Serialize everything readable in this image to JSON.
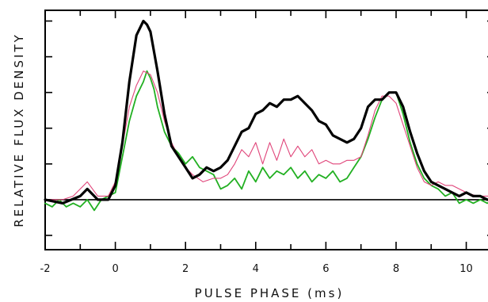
{
  "chart_data": {
    "type": "line",
    "title": "",
    "xlabel": "PULSE PHASE (ms)",
    "ylabel": "RELATIVE FLUX DENSITY",
    "xlim": [
      -2,
      10.8
    ],
    "ylim": [
      -1.4,
      5.3
    ],
    "x_ticks": [
      -2,
      0,
      2,
      4,
      6,
      8,
      10
    ],
    "x_tick_labels": [
      "-2",
      "0",
      "2",
      "4",
      "6",
      "8",
      "10"
    ],
    "y_ticks_unlabeled": [
      -1,
      0,
      1,
      2,
      3,
      4,
      5
    ],
    "grid": false,
    "baseline": 0,
    "colors": {
      "black": "#000000",
      "red": "#e0457a",
      "green": "#22b022",
      "baseline": "#000000"
    },
    "series": [
      {
        "color": "black",
        "x": [
          -2.0,
          -1.5,
          -1.0,
          -0.8,
          -0.5,
          -0.2,
          0.0,
          0.2,
          0.4,
          0.6,
          0.8,
          0.9,
          1.0,
          1.2,
          1.4,
          1.6,
          1.8,
          2.0,
          2.2,
          2.4,
          2.6,
          2.8,
          3.0,
          3.2,
          3.4,
          3.6,
          3.8,
          4.0,
          4.2,
          4.4,
          4.6,
          4.8,
          5.0,
          5.2,
          5.4,
          5.6,
          5.8,
          6.0,
          6.2,
          6.4,
          6.6,
          6.8,
          7.0,
          7.2,
          7.4,
          7.6,
          7.8,
          8.0,
          8.2,
          8.4,
          8.6,
          8.8,
          9.0,
          9.2,
          9.4,
          9.6,
          9.8,
          10.0,
          10.2,
          10.4,
          10.6,
          10.8
        ],
        "y": [
          0.0,
          -0.1,
          0.1,
          0.3,
          0.0,
          0.0,
          0.4,
          1.6,
          3.3,
          4.6,
          5.0,
          4.9,
          4.7,
          3.6,
          2.4,
          1.5,
          1.2,
          0.9,
          0.6,
          0.7,
          0.9,
          0.8,
          0.9,
          1.1,
          1.5,
          1.9,
          2.0,
          2.4,
          2.5,
          2.7,
          2.6,
          2.8,
          2.8,
          2.9,
          2.7,
          2.5,
          2.2,
          2.1,
          1.8,
          1.7,
          1.6,
          1.7,
          2.0,
          2.6,
          2.8,
          2.8,
          3.0,
          3.0,
          2.6,
          1.9,
          1.3,
          0.8,
          0.5,
          0.4,
          0.3,
          0.2,
          0.1,
          0.2,
          0.1,
          0.1,
          0.0,
          0.0
        ]
      },
      {
        "color": "red",
        "x": [
          -2.0,
          -1.5,
          -1.2,
          -0.8,
          -0.5,
          -0.2,
          0.0,
          0.2,
          0.4,
          0.6,
          0.8,
          1.0,
          1.2,
          1.4,
          1.6,
          1.8,
          2.0,
          2.2,
          2.5,
          2.8,
          3.0,
          3.2,
          3.4,
          3.6,
          3.8,
          4.0,
          4.2,
          4.4,
          4.6,
          4.8,
          5.0,
          5.2,
          5.4,
          5.6,
          5.8,
          6.0,
          6.2,
          6.4,
          6.6,
          6.8,
          7.0,
          7.2,
          7.4,
          7.6,
          7.8,
          8.0,
          8.2,
          8.4,
          8.6,
          8.8,
          9.0,
          9.2,
          9.4,
          9.6,
          9.8,
          10.0,
          10.3,
          10.6,
          10.8
        ],
        "y": [
          0.0,
          0.0,
          0.1,
          0.5,
          0.1,
          0.1,
          0.5,
          1.5,
          2.6,
          3.2,
          3.6,
          3.5,
          3.0,
          2.2,
          1.6,
          1.2,
          0.9,
          0.7,
          0.5,
          0.6,
          0.6,
          0.7,
          1.0,
          1.4,
          1.2,
          1.6,
          1.0,
          1.6,
          1.1,
          1.7,
          1.2,
          1.5,
          1.2,
          1.4,
          1.0,
          1.1,
          1.0,
          1.0,
          1.1,
          1.1,
          1.2,
          1.8,
          2.5,
          2.9,
          2.9,
          2.7,
          2.1,
          1.5,
          0.9,
          0.5,
          0.4,
          0.5,
          0.4,
          0.4,
          0.3,
          0.2,
          0.1,
          0.1,
          0.1
        ]
      },
      {
        "color": "green",
        "x": [
          -2.0,
          -1.8,
          -1.6,
          -1.4,
          -1.2,
          -1.0,
          -0.8,
          -0.6,
          -0.4,
          -0.2,
          0.0,
          0.2,
          0.4,
          0.6,
          0.8,
          0.9,
          1.0,
          1.1,
          1.2,
          1.4,
          1.6,
          1.8,
          2.0,
          2.2,
          2.4,
          2.6,
          2.8,
          3.0,
          3.2,
          3.4,
          3.6,
          3.8,
          4.0,
          4.2,
          4.4,
          4.6,
          4.8,
          5.0,
          5.2,
          5.4,
          5.6,
          5.8,
          6.0,
          6.2,
          6.4,
          6.6,
          6.8,
          7.0,
          7.2,
          7.4,
          7.6,
          7.8,
          8.0,
          8.2,
          8.4,
          8.6,
          8.8,
          9.0,
          9.2,
          9.4,
          9.6,
          9.8,
          10.0,
          10.2,
          10.4,
          10.6,
          10.8
        ],
        "y": [
          -0.1,
          -0.2,
          0.0,
          -0.2,
          -0.1,
          -0.2,
          0.0,
          -0.3,
          0.0,
          0.1,
          0.2,
          1.2,
          2.2,
          2.9,
          3.3,
          3.6,
          3.4,
          3.1,
          2.6,
          1.9,
          1.5,
          1.3,
          1.0,
          1.2,
          0.9,
          0.8,
          0.7,
          0.3,
          0.4,
          0.6,
          0.3,
          0.8,
          0.5,
          0.9,
          0.6,
          0.8,
          0.7,
          0.9,
          0.6,
          0.8,
          0.5,
          0.7,
          0.6,
          0.8,
          0.5,
          0.6,
          0.9,
          1.2,
          1.7,
          2.3,
          2.8,
          3.0,
          3.0,
          2.4,
          1.6,
          1.0,
          0.6,
          0.4,
          0.3,
          0.1,
          0.2,
          -0.1,
          0.0,
          -0.1,
          0.0,
          -0.1,
          0.0
        ]
      }
    ]
  }
}
